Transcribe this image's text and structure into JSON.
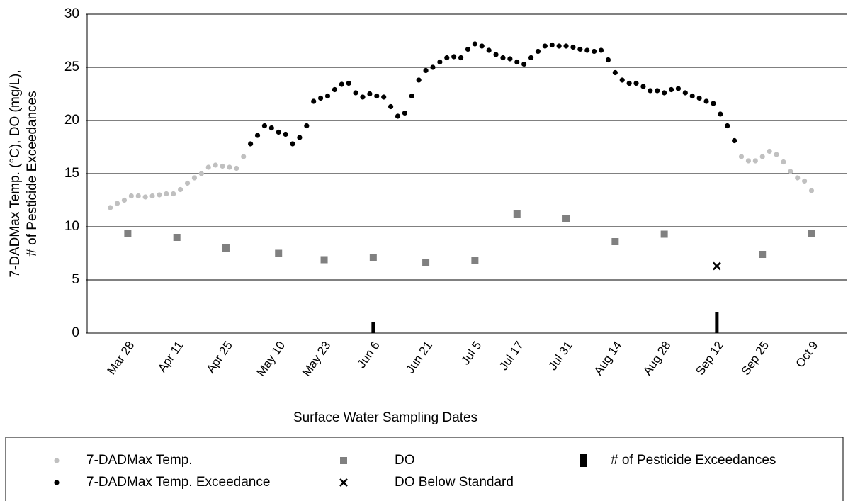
{
  "chart_data": {
    "type": "scatter",
    "ylabel": [
      "7-DADMax Temp. (°C), DO (mg/L),",
      "# of Pesticide Exceedances"
    ],
    "xlabel": "Surface Water Sampling Dates",
    "xlim": [
      "Mar 16",
      "Oct 19"
    ],
    "xticks": [
      "Mar 28",
      "Apr 11",
      "Apr 25",
      "May 10",
      "May 23",
      "Jun 6",
      "Jun 21",
      "Jul 5",
      "Jul 17",
      "Jul 31",
      "Aug 14",
      "Aug 28",
      "Sep 12",
      "Sep 25",
      "Oct 9"
    ],
    "ylim": [
      0,
      30
    ],
    "yticks": [
      0,
      5,
      10,
      15,
      20,
      25,
      30
    ],
    "grid": true,
    "series": [
      {
        "name": "7-DADMax Temp.",
        "color": "#c0c0c0",
        "marker": "circle",
        "x": [
          "Mar 23",
          "Mar 25",
          "Mar 27",
          "Mar 29",
          "Mar 31",
          "Apr 2",
          "Apr 4",
          "Apr 6",
          "Apr 8",
          "Apr 10",
          "Apr 12",
          "Apr 14",
          "Apr 16",
          "Apr 18",
          "Apr 20",
          "Apr 22",
          "Apr 24",
          "Apr 26",
          "Apr 28",
          "Apr 30",
          "Sep 19",
          "Sep 21",
          "Sep 23",
          "Sep 25",
          "Sep 27",
          "Sep 29",
          "Oct 1",
          "Oct 3",
          "Oct 5",
          "Oct 7",
          "Oct 9"
        ],
        "values": [
          11.8,
          12.2,
          12.5,
          12.9,
          12.9,
          12.8,
          12.9,
          13.0,
          13.1,
          13.1,
          13.5,
          14.1,
          14.6,
          15.0,
          15.6,
          15.8,
          15.7,
          15.6,
          15.5,
          16.6,
          16.6,
          16.2,
          16.2,
          16.6,
          17.1,
          16.8,
          16.1,
          15.2,
          14.6,
          14.3,
          13.4
        ]
      },
      {
        "name": "7-DADMax Temp. Exceedance",
        "color": "#000000",
        "marker": "circle",
        "x": [
          "May 2",
          "May 4",
          "May 6",
          "May 8",
          "May 10",
          "May 12",
          "May 14",
          "May 16",
          "May 18",
          "May 20",
          "May 22",
          "May 24",
          "May 26",
          "May 28",
          "May 30",
          "Jun 1",
          "Jun 3",
          "Jun 5",
          "Jun 7",
          "Jun 9",
          "Jun 11",
          "Jun 13",
          "Jun 15",
          "Jun 17",
          "Jun 19",
          "Jun 21",
          "Jun 23",
          "Jun 25",
          "Jun 27",
          "Jun 29",
          "Jul 1",
          "Jul 3",
          "Jul 5",
          "Jul 7",
          "Jul 9",
          "Jul 11",
          "Jul 13",
          "Jul 15",
          "Jul 17",
          "Jul 19",
          "Jul 21",
          "Jul 23",
          "Jul 25",
          "Jul 27",
          "Jul 29",
          "Jul 31",
          "Aug 2",
          "Aug 4",
          "Aug 6",
          "Aug 8",
          "Aug 10",
          "Aug 12",
          "Aug 14",
          "Aug 16",
          "Aug 18",
          "Aug 20",
          "Aug 22",
          "Aug 24",
          "Aug 26",
          "Aug 28",
          "Aug 30",
          "Sep 1",
          "Sep 3",
          "Sep 5",
          "Sep 7",
          "Sep 9",
          "Sep 11",
          "Sep 13",
          "Sep 15",
          "Sep 17"
        ],
        "values": [
          17.8,
          18.6,
          19.5,
          19.3,
          18.9,
          18.7,
          17.8,
          18.4,
          19.5,
          21.8,
          22.1,
          22.3,
          22.9,
          23.4,
          23.5,
          22.6,
          22.2,
          22.5,
          22.3,
          22.2,
          21.3,
          20.4,
          20.7,
          22.3,
          23.8,
          24.7,
          25.0,
          25.5,
          25.9,
          26.0,
          25.9,
          26.7,
          27.2,
          27.0,
          26.6,
          26.2,
          25.9,
          25.8,
          25.5,
          25.3,
          25.9,
          26.5,
          27.0,
          27.1,
          27.0,
          27.0,
          26.9,
          26.7,
          26.6,
          26.5,
          26.6,
          25.7,
          24.5,
          23.8,
          23.5,
          23.5,
          23.2,
          22.8,
          22.8,
          22.6,
          22.9,
          23.0,
          22.6,
          22.3,
          22.1,
          21.8,
          21.6,
          20.6,
          19.5,
          18.1
        ]
      },
      {
        "name": "DO",
        "color": "#808080",
        "marker": "square",
        "x": [
          "Mar 28",
          "Apr 11",
          "Apr 25",
          "May 10",
          "May 23",
          "Jun 6",
          "Jun 21",
          "Jul 5",
          "Jul 17",
          "Jul 31",
          "Aug 14",
          "Aug 28",
          "Sep 25",
          "Oct 9"
        ],
        "values": [
          9.4,
          9.0,
          8.0,
          7.5,
          6.9,
          7.1,
          6.6,
          6.8,
          11.2,
          10.8,
          8.6,
          9.3,
          7.4,
          9.4
        ]
      },
      {
        "name": "DO Below Standard",
        "color": "#000000",
        "marker": "x",
        "x": [
          "Sep 12"
        ],
        "values": [
          6.3
        ]
      },
      {
        "name": "# of Pesticide Exceedances",
        "color": "#000000",
        "marker": "bar",
        "x": [
          "Jun 6",
          "Sep 12"
        ],
        "values": [
          1,
          2
        ]
      }
    ]
  }
}
